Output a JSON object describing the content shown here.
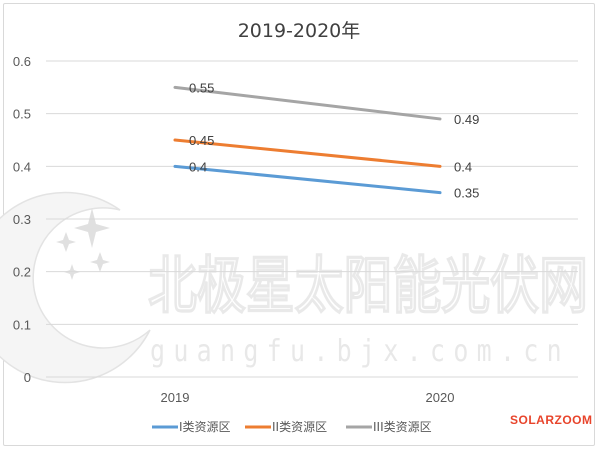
{
  "chart_data": {
    "type": "line",
    "title": "2019-2020年",
    "categories": [
      "2019",
      "2020"
    ],
    "ylim": [
      0,
      0.6
    ],
    "yticks": [
      "0",
      "0.1",
      "0.2",
      "0.3",
      "0.4",
      "0.5",
      "0.6"
    ],
    "grid": true,
    "legend_position": "bottom",
    "series": [
      {
        "name": "I类资源区",
        "values": [
          0.4,
          0.35
        ],
        "labels": [
          "0.4",
          "0.35"
        ],
        "color": "#5b9bd5"
      },
      {
        "name": "II类资源区",
        "values": [
          0.45,
          0.4
        ],
        "labels": [
          "0.45",
          "0.4"
        ],
        "color": "#ed7d31"
      },
      {
        "name": "III类资源区",
        "values": [
          0.55,
          0.49
        ],
        "labels": [
          "0.55",
          "0.49"
        ],
        "color": "#a5a5a5"
      }
    ]
  },
  "watermark": {
    "brand_cn": "北极星太阳能光伏网",
    "url": "guangfu.bjx.com.cn"
  },
  "brand_tag": "SOLARZOOM"
}
